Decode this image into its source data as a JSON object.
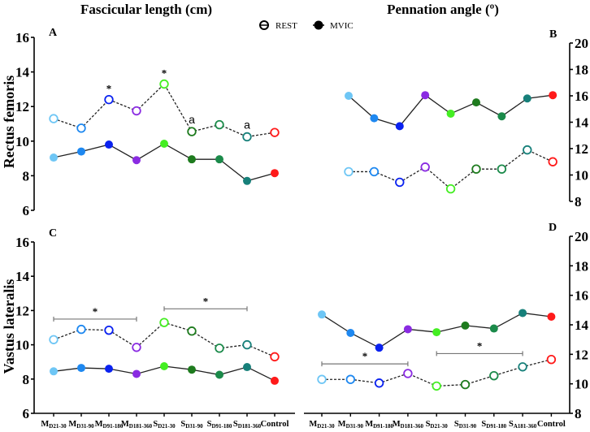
{
  "titles": {
    "left": "Fascicular length (cm)",
    "right": "Pennation angle (º)"
  },
  "legend": [
    {
      "label": "REST",
      "marker": "open-circle-dashed"
    },
    {
      "label": "MVIC",
      "marker": "filled-circle-solid"
    }
  ],
  "row_labels": {
    "top": "Rectus femoris",
    "bottom": "Vastus lateralis"
  },
  "colors": [
    "#6ec6f5",
    "#1e88f0",
    "#0a22f0",
    "#8a2be2",
    "#44ee22",
    "#1e7b1e",
    "#1b8a4a",
    "#17807a",
    "#ff1a1a"
  ],
  "chart_data": [
    {
      "panel": "A",
      "type": "line",
      "ylabel": "Rectus femoris",
      "title": "Fascicular length (cm)",
      "ylim": [
        6,
        16
      ],
      "yticks": [
        6,
        8,
        10,
        12,
        14,
        16
      ],
      "y_axis_side": "left",
      "categories": [
        {
          "m": "M",
          "s": "D21-30"
        },
        {
          "m": "M",
          "s": "D31-90"
        },
        {
          "m": "M",
          "s": "D91-180"
        },
        {
          "m": "M",
          "s": "D181-360"
        },
        {
          "m": "S",
          "s": "D21-30"
        },
        {
          "m": "S",
          "s": "D31-90"
        },
        {
          "m": "S",
          "s": "D91-180"
        },
        {
          "m": "S",
          "s": "D181-360"
        },
        {
          "m": "Control",
          "s": ""
        }
      ],
      "series": [
        {
          "name": "REST",
          "values": [
            11.3,
            10.75,
            12.4,
            11.75,
            13.3,
            10.55,
            10.95,
            10.25,
            10.5
          ]
        },
        {
          "name": "MVIC",
          "values": [
            9.05,
            9.4,
            9.8,
            8.9,
            9.85,
            8.95,
            8.95,
            7.7,
            8.15
          ]
        }
      ],
      "annotations": [
        {
          "text": "*",
          "index": 2,
          "value": 12.4
        },
        {
          "text": "*",
          "index": 4,
          "value": 13.3
        },
        {
          "text": "a",
          "index": 5,
          "value": 10.55
        },
        {
          "text": "a",
          "index": 7,
          "value": 10.25
        }
      ],
      "brackets": []
    },
    {
      "panel": "B",
      "type": "line",
      "title": "Pennation angle (º)",
      "ylim": [
        8,
        20
      ],
      "yticks": [
        8,
        10,
        12,
        14,
        16,
        18,
        20
      ],
      "y_axis_side": "right",
      "categories": [
        {
          "m": "M",
          "s": "D21-30"
        },
        {
          "m": "M",
          "s": "D31-90"
        },
        {
          "m": "M",
          "s": "D91-180"
        },
        {
          "m": "M",
          "s": "D181-360"
        },
        {
          "m": "S",
          "s": "D21-30"
        },
        {
          "m": "S",
          "s": "D31-90"
        },
        {
          "m": "S",
          "s": "D91-180"
        },
        {
          "m": "S",
          "s": "A181-360"
        },
        {
          "m": "Control",
          "s": ""
        }
      ],
      "series": [
        {
          "name": "REST",
          "values": [
            10.25,
            10.25,
            9.45,
            10.6,
            8.95,
            10.45,
            10.45,
            11.9,
            11.0
          ]
        },
        {
          "name": "MVIC",
          "values": [
            16.0,
            14.3,
            13.7,
            16.05,
            14.65,
            15.5,
            14.45,
            15.8,
            16.05
          ]
        }
      ],
      "annotations": [],
      "brackets": []
    },
    {
      "panel": "C",
      "type": "line",
      "ylabel": "Vastus lateralis",
      "ylim": [
        6,
        16
      ],
      "yticks": [
        6,
        8,
        10,
        12,
        14,
        16
      ],
      "y_axis_side": "left",
      "categories": [
        {
          "m": "M",
          "s": "D21-30"
        },
        {
          "m": "M",
          "s": "D31-90"
        },
        {
          "m": "M",
          "s": "D91-180"
        },
        {
          "m": "M",
          "s": "D181-360"
        },
        {
          "m": "S",
          "s": "D21-30"
        },
        {
          "m": "S",
          "s": "D31-90"
        },
        {
          "m": "S",
          "s": "D91-180"
        },
        {
          "m": "S",
          "s": "D181-360"
        },
        {
          "m": "Control",
          "s": ""
        }
      ],
      "series": [
        {
          "name": "REST",
          "values": [
            10.3,
            10.9,
            10.85,
            9.85,
            11.3,
            10.8,
            9.8,
            10.0,
            9.3
          ]
        },
        {
          "name": "MVIC",
          "values": [
            8.45,
            8.65,
            8.6,
            8.3,
            8.75,
            8.55,
            8.25,
            8.7,
            7.9
          ]
        }
      ],
      "annotations": [],
      "brackets": [
        {
          "from": 0,
          "to": 3,
          "value": 11.5,
          "text": "*"
        },
        {
          "from": 4,
          "to": 7,
          "value": 12.1,
          "text": "*"
        }
      ]
    },
    {
      "panel": "D",
      "type": "line",
      "ylim": [
        8,
        20
      ],
      "yticks": [
        8,
        10,
        12,
        14,
        16,
        18,
        20
      ],
      "y_axis_side": "right",
      "categories": [
        {
          "m": "M",
          "s": "D21-30"
        },
        {
          "m": "M",
          "s": "D31-90"
        },
        {
          "m": "M",
          "s": "D91-180"
        },
        {
          "m": "M",
          "s": "D181-360"
        },
        {
          "m": "S",
          "s": "D21-30"
        },
        {
          "m": "S",
          "s": "D31-90"
        },
        {
          "m": "S",
          "s": "D91-180"
        },
        {
          "m": "S",
          "s": "A181-360"
        },
        {
          "m": "Control",
          "s": ""
        }
      ],
      "series": [
        {
          "name": "REST",
          "values": [
            10.3,
            10.3,
            10.05,
            10.7,
            9.85,
            9.95,
            10.55,
            11.15,
            11.65
          ]
        },
        {
          "name": "MVIC",
          "values": [
            14.7,
            13.45,
            12.45,
            13.7,
            13.5,
            13.95,
            13.75,
            14.8,
            14.55
          ]
        }
      ],
      "annotations": [],
      "brackets": [
        {
          "from": 0,
          "to": 3,
          "value": 11.35,
          "text": "*"
        },
        {
          "from": 4,
          "to": 7,
          "value": 12.05,
          "text": "*"
        }
      ]
    }
  ]
}
